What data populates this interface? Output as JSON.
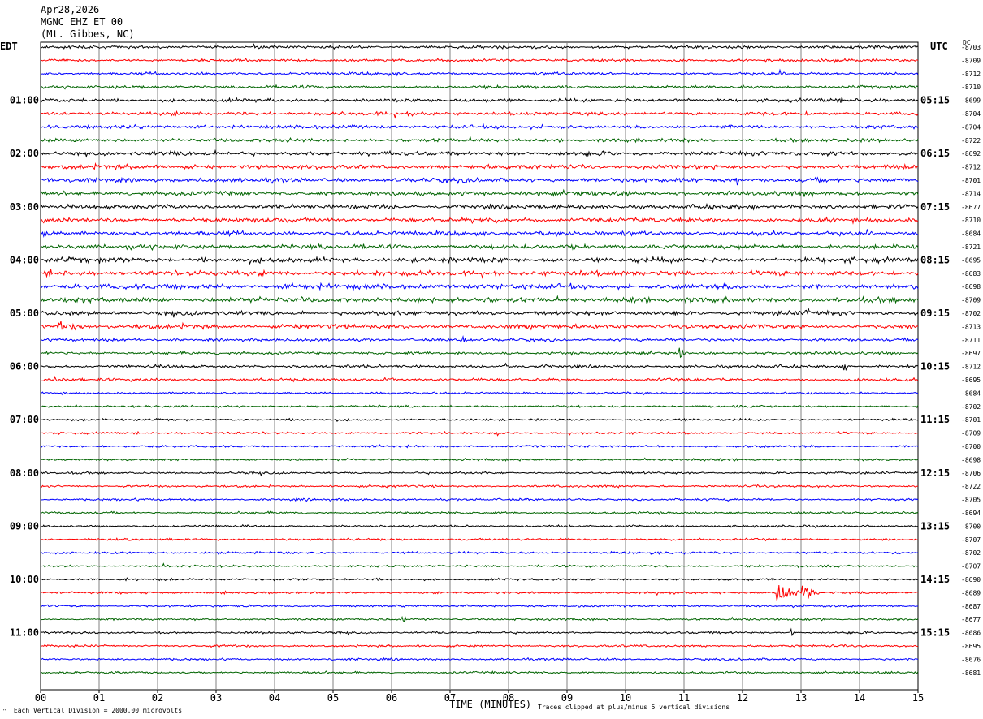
{
  "header": {
    "date": "Apr28,2026",
    "station": "MGNC EHZ ET 00",
    "location": "(Mt. Gibbes, NC)"
  },
  "left_timezone": "EDT",
  "right_timezone": "UTC",
  "dc_label": "DC",
  "chart_data": {
    "type": "line",
    "title": "",
    "xlabel": "TIME (MINUTES)",
    "x_ticks": [
      "00",
      "01",
      "02",
      "03",
      "04",
      "05",
      "06",
      "07",
      "08",
      "09",
      "10",
      "11",
      "12",
      "13",
      "14",
      "15"
    ],
    "xlim": [
      0,
      15
    ],
    "left_hour_labels": [
      {
        "row": 4,
        "label": "01:00"
      },
      {
        "row": 8,
        "label": "02:00"
      },
      {
        "row": 12,
        "label": "03:00"
      },
      {
        "row": 16,
        "label": "04:00"
      },
      {
        "row": 20,
        "label": "05:00"
      },
      {
        "row": 24,
        "label": "06:00"
      },
      {
        "row": 28,
        "label": "07:00"
      },
      {
        "row": 32,
        "label": "08:00"
      },
      {
        "row": 36,
        "label": "09:00"
      },
      {
        "row": 40,
        "label": "10:00"
      },
      {
        "row": 44,
        "label": "11:00"
      }
    ],
    "right_hour_labels": [
      {
        "row": 4,
        "label": "05:15"
      },
      {
        "row": 8,
        "label": "06:15"
      },
      {
        "row": 12,
        "label": "07:15"
      },
      {
        "row": 16,
        "label": "08:15"
      },
      {
        "row": 20,
        "label": "09:15"
      },
      {
        "row": 24,
        "label": "10:15"
      },
      {
        "row": 28,
        "label": "11:15"
      },
      {
        "row": 32,
        "label": "12:15"
      },
      {
        "row": 36,
        "label": "13:15"
      },
      {
        "row": 40,
        "label": "14:15"
      },
      {
        "row": 44,
        "label": "15:15"
      }
    ],
    "trace_colors": [
      "#000000",
      "#ff0000",
      "#0000ff",
      "#006400"
    ],
    "dc_offsets": [
      "-8703",
      "-8709",
      "-8712",
      "-8710",
      "-8699",
      "-8704",
      "-8704",
      "-8722",
      "-8692",
      "-8712",
      "-8701",
      "-8714",
      "-8677",
      "-8710",
      "-8684",
      "-8721",
      "-8695",
      "-8683",
      "-8698",
      "-8709",
      "-8702",
      "-8713",
      "-8711",
      "-8697",
      "-8712",
      "-8695",
      "-8684",
      "-8702",
      "-8701",
      "-8709",
      "-8700",
      "-8698",
      "-8706",
      "-8722",
      "-8705",
      "-8694",
      "-8700",
      "-8707",
      "-8702",
      "-8707",
      "-8690",
      "-8689",
      "-8687",
      "-8677",
      "-8686",
      "-8695",
      "-8676",
      "-8681"
    ],
    "trace_amplitude": [
      2,
      2,
      2,
      2,
      2.5,
      2.5,
      2.5,
      2.5,
      3,
      3,
      3,
      3,
      3,
      3,
      3,
      3,
      3.5,
      3.5,
      3.5,
      3.5,
      3,
      3,
      2,
      2,
      2,
      2,
      1.5,
      1.5,
      1.5,
      1.5,
      1.5,
      1.5,
      1.5,
      1.5,
      1.5,
      1.5,
      1.5,
      1.5,
      1.5,
      1.5,
      1.5,
      1.5,
      1.5,
      1.5,
      1.5,
      1.5,
      1.5,
      1.5
    ],
    "events": [
      {
        "row": 41,
        "minute": 12.6,
        "amplitude": 24,
        "duration": 0.4
      },
      {
        "row": 41,
        "minute": 13.05,
        "amplitude": 20,
        "duration": 0.25
      },
      {
        "row": 22,
        "minute": 7.2,
        "amplitude": 10,
        "duration": 0.2
      },
      {
        "row": 23,
        "minute": 10.95,
        "amplitude": 8,
        "duration": 0.2
      },
      {
        "row": 24,
        "minute": 7.95,
        "amplitude": 12,
        "duration": 0.15
      },
      {
        "row": 24,
        "minute": 13.75,
        "amplitude": 11,
        "duration": 0.2
      },
      {
        "row": 25,
        "minute": 0.25,
        "amplitude": 8,
        "duration": 0.5
      },
      {
        "row": 25,
        "minute": 5.9,
        "amplitude": 8,
        "duration": 0.2
      },
      {
        "row": 21,
        "minute": 0.3,
        "amplitude": 7,
        "duration": 1.2
      },
      {
        "row": 18,
        "minute": 14.95,
        "amplitude": 9,
        "duration": 0.1
      },
      {
        "row": 29,
        "minute": 7.8,
        "amplitude": 7,
        "duration": 0.08
      },
      {
        "row": 43,
        "minute": 6.2,
        "amplitude": 7,
        "duration": 0.1
      },
      {
        "row": 44,
        "minute": 12.85,
        "amplitude": 14,
        "duration": 0.06
      },
      {
        "row": 10,
        "minute": 11.9,
        "amplitude": 8,
        "duration": 0.1
      },
      {
        "row": 20,
        "minute": 13.1,
        "amplitude": 8,
        "duration": 0.1
      }
    ]
  },
  "footnotes": {
    "scale": "Each Vertical Division = 2000.00 microvolts",
    "clip": "Traces clipped at plus/minus 5 vertical divisions"
  }
}
